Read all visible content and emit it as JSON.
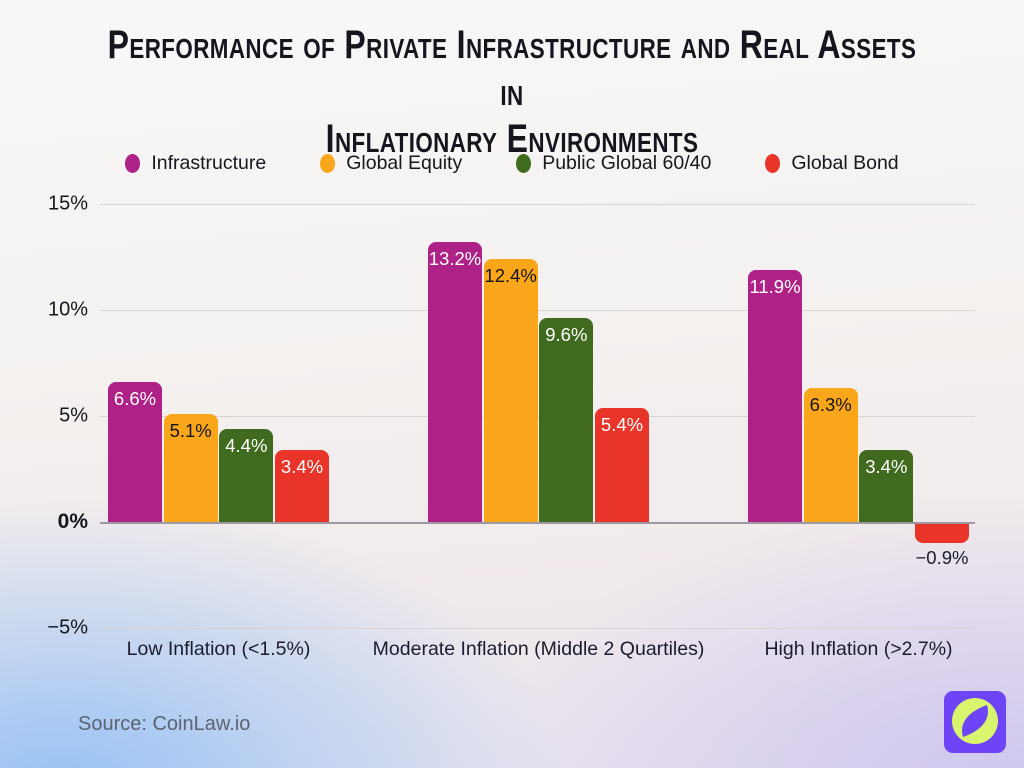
{
  "title_lines": [
    "Performance of Private Infrastructure and Real Assets in",
    "Inflationary Environments"
  ],
  "source": "Source: CoinLaw.io",
  "logo": {
    "name": "coinlaw-compass-logo",
    "bg": "#6E45F6",
    "circle": "#D9F56D"
  },
  "chart_data": {
    "type": "bar",
    "title": "Performance of Private Infrastructure and Real Assets in Inflationary Environments",
    "categories": [
      "Low Inflation (<1.5%)",
      "Moderate Inflation (Middle 2 Quartiles)",
      "High Inflation (>2.7%)"
    ],
    "series": [
      {
        "name": "Infrastructure",
        "color": "#AE2186",
        "label_color": "#ffffff",
        "values": [
          6.6,
          13.2,
          11.9
        ]
      },
      {
        "name": "Global Equity",
        "color": "#FAA61B",
        "label_color": "#141414",
        "values": [
          5.1,
          12.4,
          6.3
        ]
      },
      {
        "name": "Public Global 60/40",
        "color": "#406B1E",
        "label_color": "#ffffff",
        "values": [
          4.4,
          9.6,
          3.4
        ]
      },
      {
        "name": "Global Bond",
        "color": "#E9342A",
        "label_color": "#ffffff",
        "values": [
          3.4,
          5.4,
          -0.9
        ]
      }
    ],
    "value_labels": [
      [
        "6.6%",
        "13.2%",
        "11.9%"
      ],
      [
        "5.1%",
        "12.4%",
        "6.3%"
      ],
      [
        "4.4%",
        "9.6%",
        "3.4%"
      ],
      [
        "3.4%",
        "5.4%",
        "−0.9%"
      ]
    ],
    "yticks": [
      {
        "value": 15,
        "label": "15%"
      },
      {
        "value": 10,
        "label": "10%"
      },
      {
        "value": 5,
        "label": "5%"
      },
      {
        "value": 0,
        "label": "0%"
      },
      {
        "value": -5,
        "label": "−5%"
      }
    ],
    "ylim": [
      -5,
      15
    ],
    "grid": true,
    "legend_position": "top",
    "negative_label_color": "#1c1c2e"
  }
}
